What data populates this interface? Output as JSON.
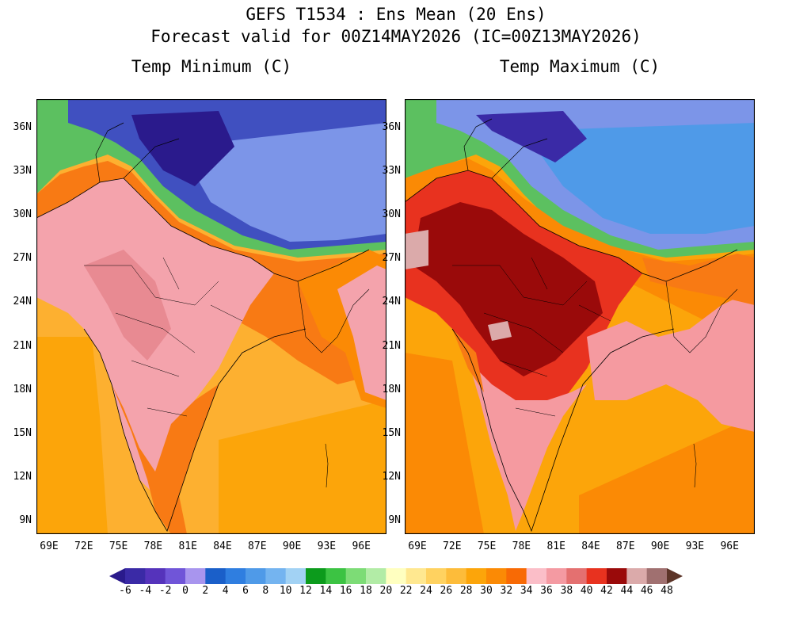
{
  "header": {
    "title_line1": "GEFS T1534 : Ens Mean (20 Ens)",
    "title_line2": "Forecast valid for 00Z14MAY2026 (IC=00Z13MAY2026)"
  },
  "panels": {
    "left_title": "Temp Minimum (C)",
    "right_title": "Temp Maximum (C)"
  },
  "axes": {
    "lat_labels": [
      "36N",
      "33N",
      "30N",
      "27N",
      "24N",
      "21N",
      "18N",
      "15N",
      "12N",
      "9N"
    ],
    "lon_labels": [
      "69E",
      "72E",
      "75E",
      "78E",
      "81E",
      "84E",
      "87E",
      "90E",
      "93E",
      "96E"
    ]
  },
  "colorbar": {
    "labels": [
      "-6",
      "-4",
      "-2",
      "0",
      "2",
      "4",
      "6",
      "8",
      "10",
      "12",
      "14",
      "16",
      "18",
      "20",
      "22",
      "24",
      "26",
      "28",
      "30",
      "32",
      "34",
      "36",
      "38",
      "40",
      "42",
      "44",
      "46",
      "48"
    ],
    "colors": [
      "#2a1a8c",
      "#3a2aa6",
      "#5533bb",
      "#7055d8",
      "#a895ee",
      "#1a5fc9",
      "#2f7ee0",
      "#4f9ae8",
      "#74b4f0",
      "#a2d2f4",
      "#0c9b1c",
      "#3cc343",
      "#7ddc76",
      "#b2eca6",
      "#ffffc0",
      "#ffe890",
      "#ffd260",
      "#fdbc3a",
      "#fca50a",
      "#fb8a05",
      "#f86a05",
      "#fbbec8",
      "#f49aa2",
      "#e47070",
      "#e8321f",
      "#9a0a0a",
      "#dbaaaa",
      "#a07070",
      "#5c3428"
    ]
  },
  "map_colors": {
    "ocean": "#fdb030",
    "plateau": "#4050c0",
    "plateau_light": "#7c95e8",
    "himalaya_green": "#5cc060",
    "min_land": "#f4a3ac",
    "min_coast": "#f87a14",
    "max_land": "#e8321f",
    "max_core": "#9a0a0a",
    "max_south": "#f59aa0"
  }
}
